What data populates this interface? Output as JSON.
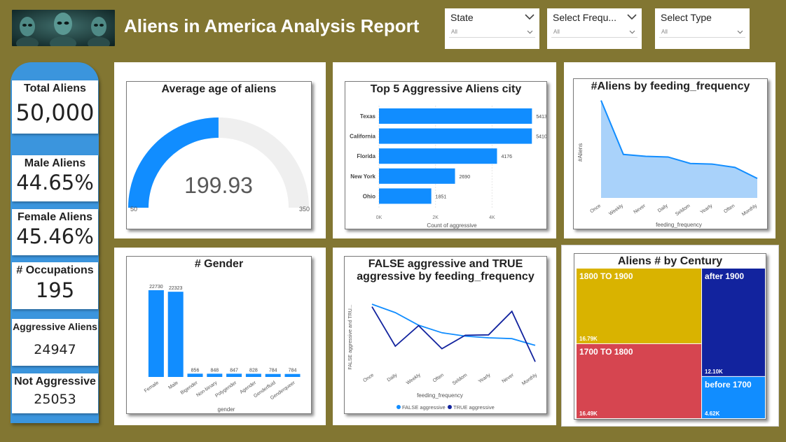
{
  "header": {
    "title": "Aliens in America Analysis Report"
  },
  "slicers": [
    {
      "label": "State",
      "value": "All"
    },
    {
      "label": "Select Frequ...",
      "value": "All"
    },
    {
      "label": "Select Type",
      "value": "All"
    }
  ],
  "kpis": {
    "total": {
      "label": "Total Aliens",
      "value": "50,000"
    },
    "male": {
      "label": "Male Aliens",
      "value": "44.65%"
    },
    "female": {
      "label": "Female Aliens",
      "value": "45.46%"
    },
    "occupations": {
      "label": "# Occupations",
      "value": "195"
    },
    "aggressive": {
      "label": "Aggressive Aliens",
      "value": "24947"
    },
    "not_aggressive": {
      "label": "Not Aggressive",
      "value": "25053"
    }
  },
  "chart_data": [
    {
      "id": "gauge",
      "type": "gauge",
      "title": "Average age of aliens",
      "value": 199.93,
      "value_label": "199.93",
      "min": 50,
      "max": 350,
      "min_label": "50",
      "max_label": "350",
      "color": "#118dff"
    },
    {
      "id": "top_cities",
      "type": "bar",
      "orientation": "horizontal",
      "title": "Top 5 Aggressive Aliens city",
      "categories": [
        "Texas",
        "California",
        "Florida",
        "New York",
        "Ohio"
      ],
      "values": [
        5413,
        5410,
        4176,
        2690,
        1851
      ],
      "xlabel": "Count of aggressive",
      "xticks": [
        {
          "value": 0,
          "label": "0K"
        },
        {
          "value": 2000,
          "label": "2K"
        },
        {
          "value": 4000,
          "label": "4K"
        }
      ],
      "xlim": [
        0,
        5800
      ],
      "color": "#118dff"
    },
    {
      "id": "feeding_area",
      "type": "area",
      "title": "#Aliens by feeding_frequency",
      "categories": [
        "Once",
        "Weekly",
        "Never",
        "Daily",
        "Seldom",
        "Yearly",
        "Often",
        "Monthly"
      ],
      "values": [
        7100,
        6270,
        6240,
        6230,
        6130,
        6120,
        6070,
        5900
      ],
      "xlabel": "feeding_frequency",
      "ylabel": "#Aliens",
      "ylim": [
        5600,
        7150
      ],
      "color": "#118dff"
    },
    {
      "id": "gender",
      "type": "bar",
      "title": "# Gender",
      "categories": [
        "Female",
        "Male",
        "Bigender",
        "Non-binary",
        "Polygender",
        "Agender",
        "Genderfluid",
        "Genderqueer"
      ],
      "values": [
        22730,
        22323,
        856,
        848,
        847,
        828,
        784,
        784
      ],
      "xlabel": "gender",
      "ylim": [
        0,
        24000
      ],
      "color": "#118dff"
    },
    {
      "id": "aggr_lines",
      "type": "line",
      "title": "FALSE aggressive and TRUE aggressive by feeding_frequency",
      "title_lines": [
        "FALSE aggressive and TRUE",
        "aggressive by feeding_frequency"
      ],
      "categories": [
        "Once",
        "Daily",
        "Weekly",
        "Often",
        "Seldom",
        "Yearly",
        "Never",
        "Monthly"
      ],
      "series": [
        {
          "name": "FALSE aggressive",
          "color": "#118dff",
          "values": [
            3500,
            3300,
            3000,
            2820,
            2740,
            2700,
            2680,
            2520
          ]
        },
        {
          "name": "TRUE aggressive",
          "color": "#12239e",
          "values": [
            3440,
            2500,
            2990,
            2440,
            2760,
            2770,
            3330,
            2130
          ]
        }
      ],
      "xlabel": "feeding_frequency",
      "ylabel": "FALSE aggressive and TRU...",
      "ylim": [
        2000,
        3700
      ]
    },
    {
      "id": "century",
      "type": "treemap",
      "title": "Aliens # by Century",
      "items": [
        {
          "name": "1800 TO 1900",
          "label": "16.79K",
          "value": 16790,
          "color": "#d9b300"
        },
        {
          "name": "1700 TO 1800",
          "label": "16.49K",
          "value": 16490,
          "color": "#d64550"
        },
        {
          "name": "after 1900",
          "label": "12.10K",
          "value": 12100,
          "color": "#12239e"
        },
        {
          "name": "before 1700",
          "label": "4.62K",
          "value": 4620,
          "color": "#118dff"
        }
      ]
    }
  ]
}
